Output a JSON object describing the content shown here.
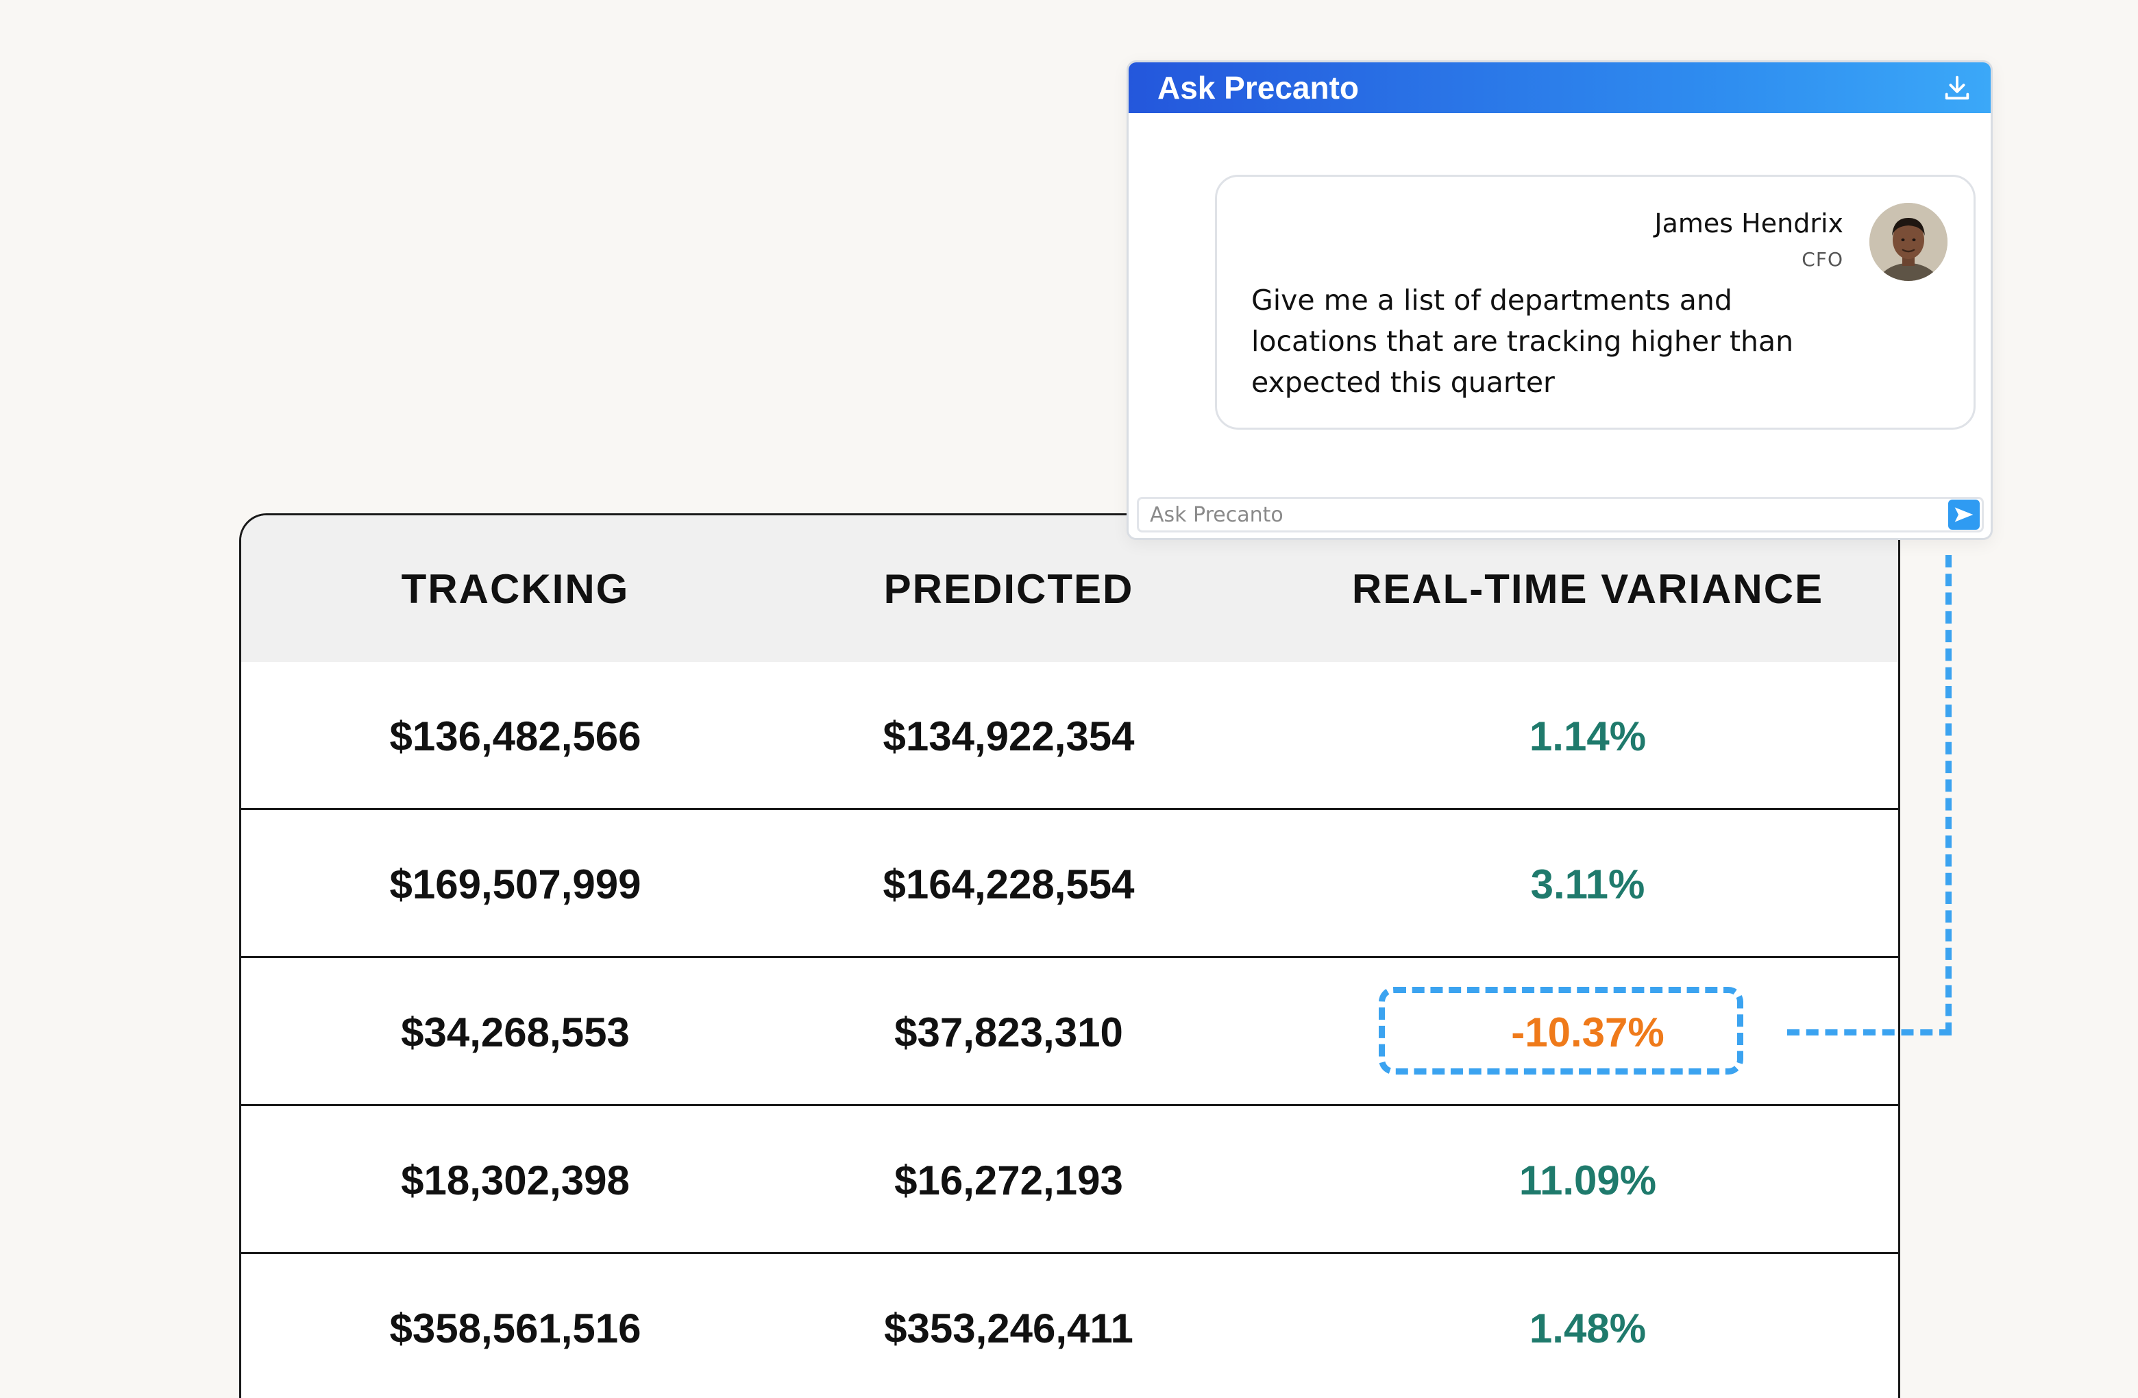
{
  "chat": {
    "title": "Ask Precanto",
    "message": {
      "sender_name": "James Hendrix",
      "sender_role": "CFO",
      "text": "Give me a list of departments and locations that are tracking higher than expected this quarter"
    },
    "input_placeholder": "Ask Precanto",
    "icons": {
      "download": "download-icon",
      "send": "send-icon"
    },
    "colors": {
      "header_start": "#2457dc",
      "header_end": "#3ba8f8"
    }
  },
  "table": {
    "headers": [
      "TRACKING",
      "PREDICTED",
      "REAL-TIME VARIANCE"
    ],
    "rows": [
      {
        "tracking": "$136,482,566",
        "predicted": "$134,922,354",
        "variance": "1.14%"
      },
      {
        "tracking": "$169,507,999",
        "predicted": "$164,228,554",
        "variance": "3.11%"
      },
      {
        "tracking": "$34,268,553",
        "predicted": "$37,823,310",
        "variance": "-10.37%"
      },
      {
        "tracking": "$18,302,398",
        "predicted": "$16,272,193",
        "variance": "11.09%"
      },
      {
        "tracking": "$358,561,516",
        "predicted": "$353,246,411",
        "variance": "1.48%"
      }
    ],
    "colors": {
      "positive": "#1f7a6c",
      "negative": "#ef7a1a",
      "highlight": "#3ba3f0"
    }
  }
}
